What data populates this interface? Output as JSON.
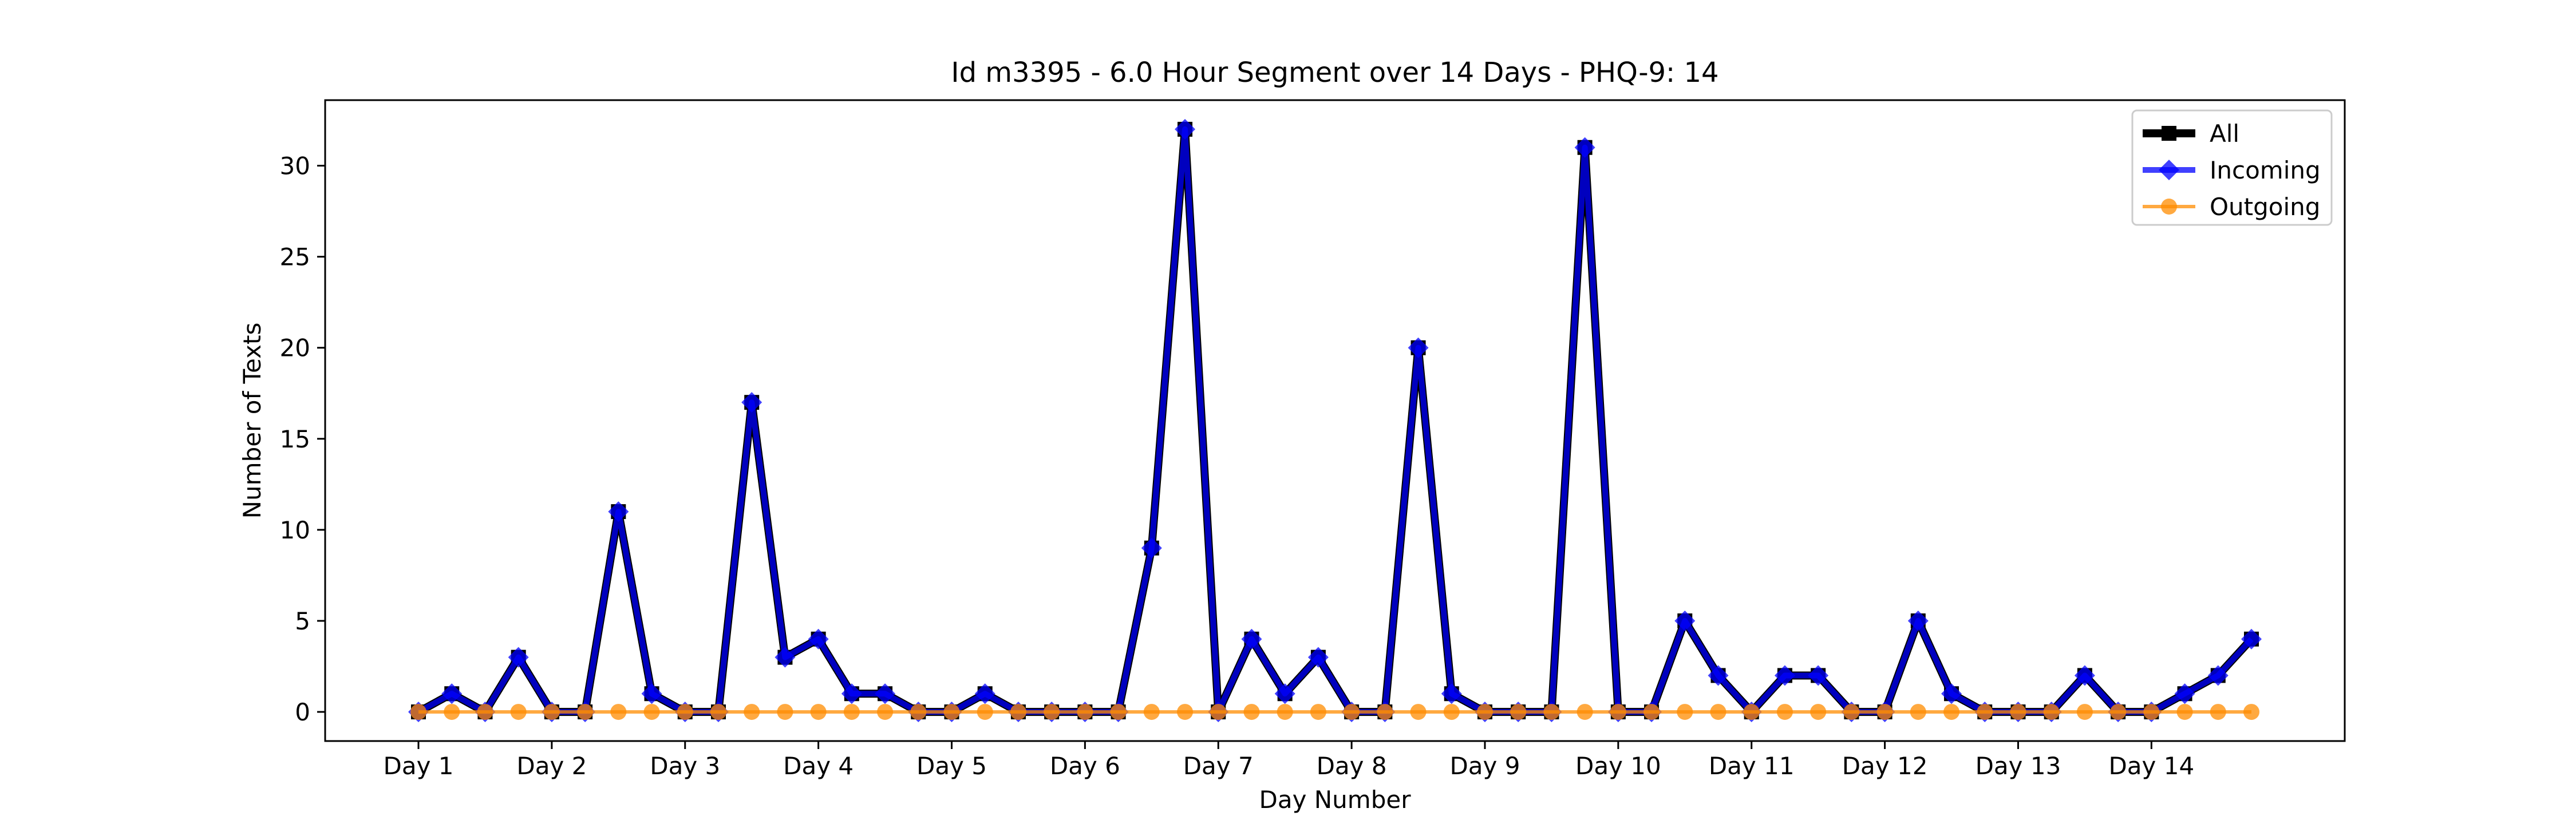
{
  "chart_data": {
    "type": "line",
    "title": "Id m3395 - 6.0 Hour Segment over 14 Days - PHQ-9: 14",
    "xlabel": "Day Number",
    "ylabel": "Number of Texts",
    "x_tick_labels": [
      "Day 1",
      "Day 2",
      "Day 3",
      "Day 4",
      "Day 5",
      "Day 6",
      "Day 7",
      "Day 8",
      "Day 9",
      "Day 10",
      "Day 11",
      "Day 12",
      "Day 13",
      "Day 14"
    ],
    "y_ticks": [
      0,
      5,
      10,
      15,
      20,
      25,
      30
    ],
    "ylim": [
      -1.6,
      33.6
    ],
    "xlim": [
      -2.8,
      57.8
    ],
    "segments_per_day": 4,
    "legend_position": "upper right",
    "grid": false,
    "series": [
      {
        "name": "All",
        "color": "#000000",
        "marker": "square",
        "values": [
          0,
          1,
          0,
          3,
          0,
          0,
          11,
          1,
          0,
          0,
          17,
          3,
          4,
          1,
          1,
          0,
          0,
          1,
          0,
          0,
          0,
          0,
          9,
          32,
          0,
          4,
          1,
          3,
          0,
          0,
          20,
          1,
          0,
          0,
          0,
          31,
          0,
          0,
          5,
          2,
          0,
          2,
          2,
          0,
          0,
          5,
          1,
          0,
          0,
          0,
          2,
          0,
          0,
          1,
          2,
          4
        ]
      },
      {
        "name": "Incoming",
        "color": "#0000ff",
        "marker": "diamond",
        "values": [
          0,
          1,
          0,
          3,
          0,
          0,
          11,
          1,
          0,
          0,
          17,
          3,
          4,
          1,
          1,
          0,
          0,
          1,
          0,
          0,
          0,
          0,
          9,
          32,
          0,
          4,
          1,
          3,
          0,
          0,
          20,
          1,
          0,
          0,
          0,
          31,
          0,
          0,
          5,
          2,
          0,
          2,
          2,
          0,
          0,
          5,
          1,
          0,
          0,
          0,
          2,
          0,
          0,
          1,
          2,
          4
        ]
      },
      {
        "name": "Outgoing",
        "color": "#ff8c00",
        "marker": "circle",
        "values": [
          0,
          0,
          0,
          0,
          0,
          0,
          0,
          0,
          0,
          0,
          0,
          0,
          0,
          0,
          0,
          0,
          0,
          0,
          0,
          0,
          0,
          0,
          0,
          0,
          0,
          0,
          0,
          0,
          0,
          0,
          0,
          0,
          0,
          0,
          0,
          0,
          0,
          0,
          0,
          0,
          0,
          0,
          0,
          0,
          0,
          0,
          0,
          0,
          0,
          0,
          0,
          0,
          0,
          0,
          0,
          0
        ]
      }
    ]
  }
}
